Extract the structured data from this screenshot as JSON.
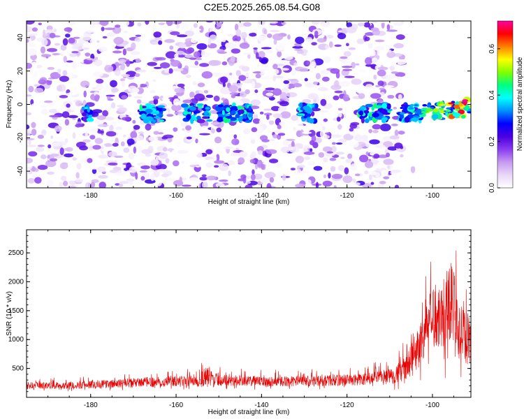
{
  "figure": {
    "title": "C2E5.2025.265.08.54.G08"
  },
  "chart_data": [
    {
      "type": "heatmap",
      "xlabel": "Height of straight line (km)",
      "ylabel": "Frequency (Hz)",
      "xlim": [
        -195,
        -91
      ],
      "ylim": [
        -50,
        50
      ],
      "xticks": [
        -180,
        -160,
        -140,
        -120,
        -100
      ],
      "yticks": [
        -40,
        -20,
        0,
        20,
        40
      ],
      "colorbar": {
        "label": "Normalized spectral amplitude",
        "range": [
          0,
          0.72
        ],
        "ticks": [
          0.0,
          0.2,
          0.4,
          0.6
        ],
        "tick_labels": [
          "0.0",
          "0.2",
          "0.4",
          "0.6"
        ],
        "colormap": [
          "#ffffff",
          "#e8d8f8",
          "#c79af0",
          "#8a3cf0",
          "#4b00e0",
          "#0000ff",
          "#0090ff",
          "#00ffff",
          "#00ff80",
          "#80ff00",
          "#ffff00",
          "#ff8000",
          "#ff0000",
          "#ff00a0"
        ]
      },
      "signal_band": {
        "center_frequency_hz": -5,
        "segments_km": [
          [
            -182,
            -180
          ],
          [
            -169,
            -163
          ],
          [
            -158,
            -152
          ],
          [
            -150,
            -142
          ],
          [
            -131,
            -127
          ],
          [
            -117,
            -110
          ],
          [
            -108,
            -91
          ]
        ],
        "peak_amplitude": 0.72,
        "peak_height_km": -93
      },
      "noise_region_km": [
        -195,
        -107
      ]
    },
    {
      "type": "line",
      "xlabel": "Height of straight line (km)",
      "ylabel": "SNR (10 * v/v)",
      "xlim": [
        -195,
        -91
      ],
      "ylim": [
        0,
        2900
      ],
      "xticks": [
        -180,
        -160,
        -140,
        -120,
        -100
      ],
      "yticks": [
        500,
        1000,
        1500,
        2000,
        2500
      ],
      "color": "#e60000",
      "series": [
        {
          "name": "SNR",
          "x": [
            -195,
            -190,
            -185,
            -180,
            -175,
            -170,
            -165,
            -160,
            -155,
            -153,
            -150,
            -145,
            -140,
            -135,
            -130,
            -125,
            -120,
            -115,
            -110,
            -107,
            -105,
            -103,
            -101,
            -99,
            -98,
            -97,
            -96,
            -95,
            -94,
            -93,
            -92,
            -91
          ],
          "baseline": [
            180,
            190,
            190,
            200,
            210,
            230,
            240,
            250,
            260,
            280,
            270,
            260,
            250,
            250,
            250,
            260,
            270,
            280,
            320,
            400,
            550,
            800,
            1100,
            1300,
            1250,
            1300,
            1500,
            1400,
            1000,
            900,
            900,
            800
          ],
          "spread": [
            150,
            150,
            160,
            180,
            180,
            200,
            220,
            220,
            250,
            500,
            250,
            230,
            220,
            220,
            230,
            240,
            260,
            280,
            350,
            500,
            700,
            1000,
            1200,
            1500,
            1400,
            1800,
            2000,
            1600,
            1200,
            1300,
            1200,
            900
          ]
        }
      ]
    }
  ]
}
